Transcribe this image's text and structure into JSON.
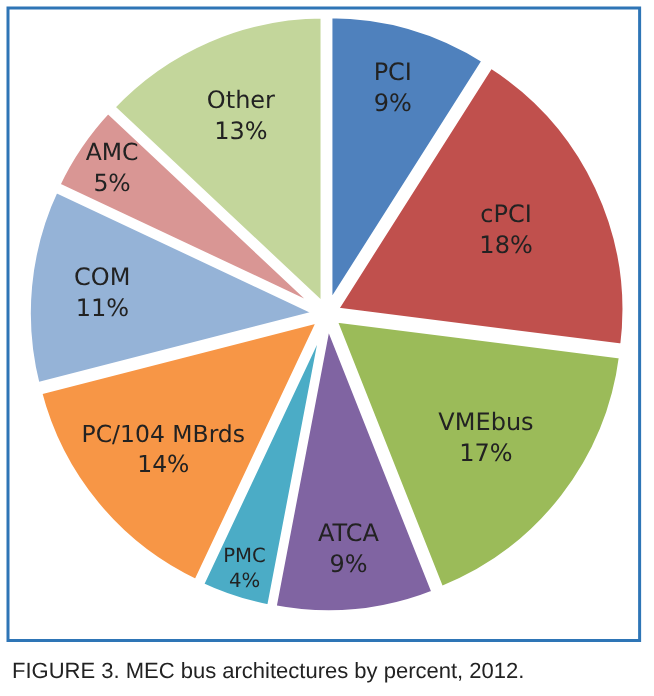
{
  "chart_data": {
    "type": "pie",
    "categories": [
      "PCI",
      "cPCI",
      "VMEbus",
      "ATCA",
      "PMC",
      "PC/104 MBrds",
      "COM",
      "AMC",
      "Other"
    ],
    "values": [
      9,
      18,
      17,
      9,
      4,
      14,
      11,
      5,
      13
    ],
    "value_labels": [
      "9%",
      "18%",
      "17%",
      "9%",
      "4%",
      "14%",
      "11%",
      "5%",
      "13%"
    ],
    "colors": [
      "#4f81bd",
      "#c0504d",
      "#9bbb59",
      "#8064a2",
      "#4bacc6",
      "#f79646",
      "#95b3d7",
      "#d99694",
      "#c3d69b"
    ],
    "annotations": [
      "FIGURE 3. MEC bus architectures by percent, 2012."
    ],
    "legend": false
  }
}
